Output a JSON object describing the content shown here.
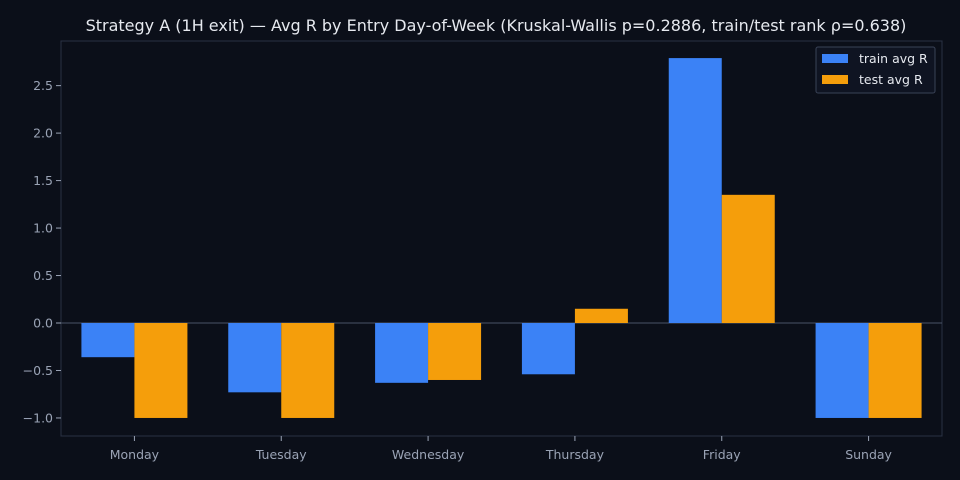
{
  "chart_data": {
    "type": "bar",
    "title": "Strategy A (1H exit) — Avg R by Entry Day-of-Week (Kruskal-Wallis p=0.2886, train/test rank ρ=0.638)",
    "xlabel": "",
    "ylabel": "",
    "categories": [
      "Monday",
      "Tuesday",
      "Wednesday",
      "Thursday",
      "Friday",
      "Sunday"
    ],
    "series": [
      {
        "name": "train avg R",
        "color": "#3b82f6",
        "values": [
          -0.36,
          -0.73,
          -0.63,
          -0.54,
          2.79,
          -1.0
        ]
      },
      {
        "name": "test avg R",
        "color": "#f59e0b",
        "values": [
          -1.0,
          -1.0,
          -0.6,
          0.15,
          1.35,
          -1.0
        ]
      }
    ],
    "ylim": [
      -1.19,
      2.97
    ],
    "yticks": [
      -1.0,
      -0.5,
      0.0,
      0.5,
      1.0,
      1.5,
      2.0,
      2.5
    ],
    "ytick_labels": [
      "−1.0",
      "−0.5",
      "0.0",
      "0.5",
      "1.0",
      "1.5",
      "2.0",
      "2.5"
    ],
    "grid": false,
    "zero_line": true,
    "legend_position": "top-right",
    "colors": {
      "background": "#0b0f19",
      "axes_edge": "#2a3244",
      "zero_line": "#4a5366",
      "tick_text": "#9aa3b5",
      "title_text": "#e6e9ef",
      "legend_bg": "#0f1422",
      "legend_edge": "#3a4357"
    }
  }
}
